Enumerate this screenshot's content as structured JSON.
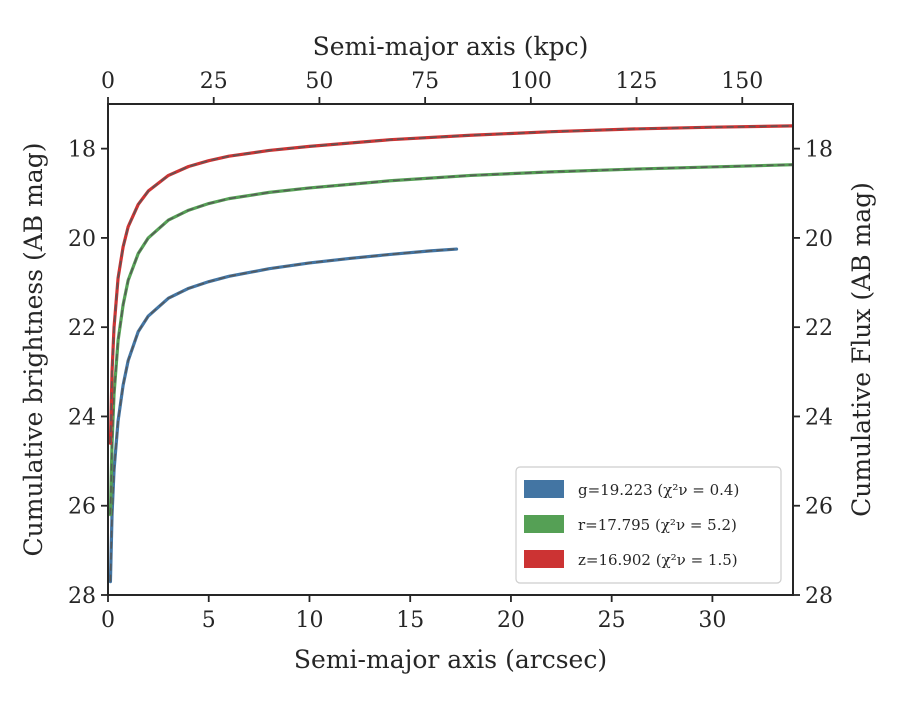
{
  "chart_data": {
    "type": "line",
    "xlabel": "Semi-major axis (arcsec)",
    "ylabel": "Cumulative brightness (AB mag)",
    "top_xlabel": "Semi-major axis (kpc)",
    "right_ylabel": "Cumulative Flux (AB mag)",
    "xlim": [
      0,
      34
    ],
    "ylim": [
      28,
      17.0
    ],
    "y_inverted": true,
    "top_xlim": [
      0,
      162
    ],
    "x_ticks": [
      0,
      5,
      10,
      15,
      20,
      25,
      30
    ],
    "top_x_ticks": [
      0,
      25,
      50,
      75,
      100,
      125,
      150
    ],
    "y_ticks": [
      18,
      20,
      22,
      24,
      26,
      28
    ],
    "grid": false,
    "legend_position": "lower right",
    "model_line_style": "dashed",
    "model_line_color": "#555555",
    "series": [
      {
        "name": "g=19.223 ($\\chi^2_\\nu = 0.4$)",
        "legend_label": "g=19.223 (χ²ν = 0.4)",
        "color": "#4375a3",
        "x": [
          0.12,
          0.2,
          0.3,
          0.5,
          0.75,
          1.0,
          1.5,
          2.0,
          3.0,
          4.0,
          5.0,
          6.0,
          8.0,
          10.0,
          12.0,
          14.0,
          16.0,
          17.3
        ],
        "y": [
          27.7,
          26.2,
          25.2,
          24.1,
          23.3,
          22.75,
          22.1,
          21.75,
          21.35,
          21.13,
          20.98,
          20.86,
          20.69,
          20.56,
          20.46,
          20.37,
          20.29,
          20.25
        ]
      },
      {
        "name": "r=17.795 ($\\chi^2_\\nu = 5.2$)",
        "legend_label": "r=17.795 (χ²ν = 5.2)",
        "color": "#55a055",
        "x": [
          0.12,
          0.2,
          0.3,
          0.5,
          0.75,
          1.0,
          1.5,
          2.0,
          3.0,
          4.0,
          5.0,
          6.0,
          8.0,
          10.0,
          14.0,
          18.0,
          22.0,
          26.0,
          30.0,
          34.0
        ],
        "y": [
          26.2,
          24.6,
          23.5,
          22.3,
          21.5,
          20.95,
          20.35,
          20.0,
          19.6,
          19.38,
          19.23,
          19.12,
          18.98,
          18.88,
          18.72,
          18.6,
          18.52,
          18.46,
          18.41,
          18.36
        ]
      },
      {
        "name": "z=16.902 ($\\chi^2_\\nu = 1.5$)",
        "legend_label": "z=16.902 (χ²ν = 1.5)",
        "color": "#cc3333",
        "x": [
          0.12,
          0.2,
          0.3,
          0.5,
          0.75,
          1.0,
          1.5,
          2.0,
          3.0,
          4.0,
          5.0,
          6.0,
          8.0,
          10.0,
          14.0,
          18.0,
          22.0,
          26.0,
          30.0,
          34.0
        ],
        "y": [
          24.6,
          23.0,
          22.0,
          20.9,
          20.2,
          19.75,
          19.25,
          18.95,
          18.6,
          18.4,
          18.27,
          18.17,
          18.04,
          17.95,
          17.8,
          17.7,
          17.62,
          17.56,
          17.52,
          17.49
        ]
      }
    ]
  }
}
